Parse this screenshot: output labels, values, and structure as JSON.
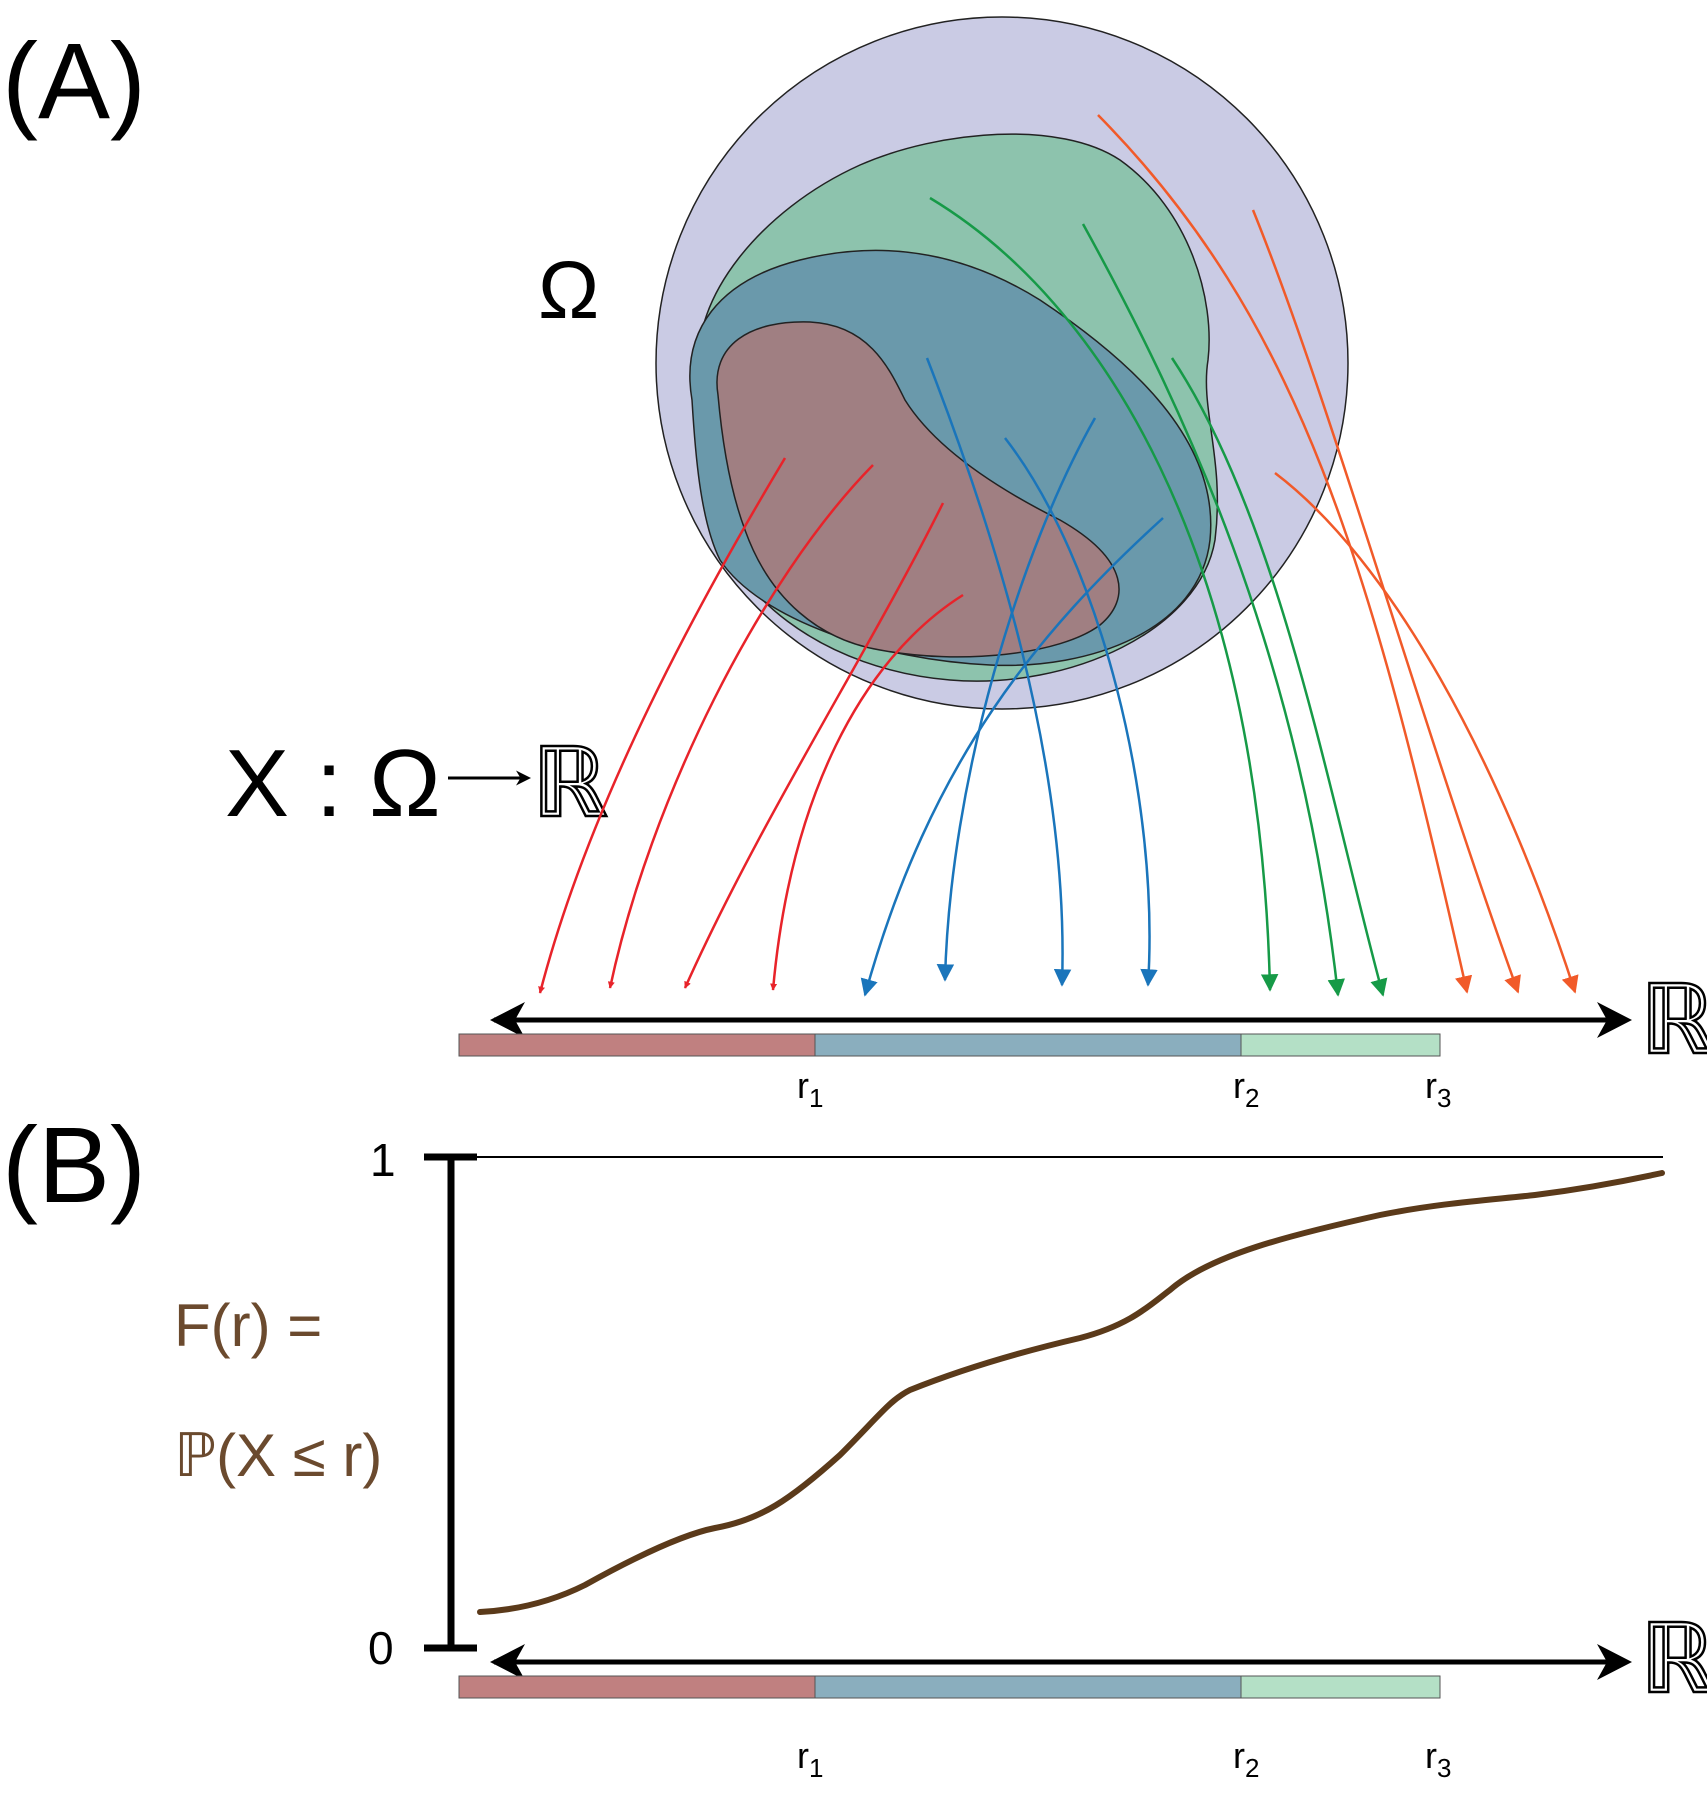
{
  "panel_a": {
    "label": "(A)",
    "omega_label": "Ω",
    "map_label": {
      "domain_part": "X : Ω",
      "codomain": "ℝ"
    },
    "axis_label": "ℝ",
    "ticks": [
      {
        "base": "r",
        "sub": "1"
      },
      {
        "base": "r",
        "sub": "2"
      },
      {
        "base": "r",
        "sub": "3"
      }
    ]
  },
  "panel_b": {
    "label": "(B)",
    "y_top": "1",
    "y_bottom": "0",
    "curve_label_line1": "F(r) =",
    "curve_label_line2": "ℙ(X ≤ r)",
    "axis_label": "ℝ",
    "ticks": [
      {
        "base": "r",
        "sub": "1"
      },
      {
        "base": "r",
        "sub": "2"
      },
      {
        "base": "r",
        "sub": "3"
      }
    ]
  },
  "colors": {
    "omega_fill": "#cacbe4",
    "green_fill": "#8dc3ad",
    "blue_fill": "#6a99ab",
    "red_fill": "#a07f82",
    "red_arrow": "#e8232a",
    "blue_arrow": "#1a75bb",
    "green_arrow": "#169a47",
    "orange_arrow": "#f15a29",
    "seg_red": "#c08080",
    "seg_blue": "#8aaebe",
    "seg_green": "#b4e0c6",
    "curve": "#5b3a1a",
    "curve_label": "#6b4a2e"
  }
}
